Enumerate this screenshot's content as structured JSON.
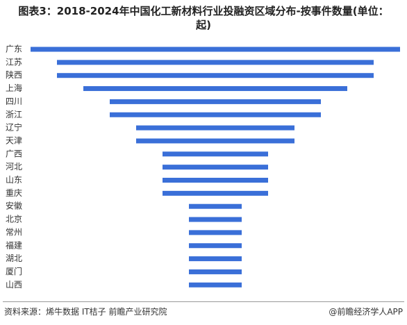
{
  "chart_data": {
    "type": "funnel",
    "title": "图表3：2018-2024年中国化工新材料行业投融资区域分布-按事件数量(单位：起)",
    "categories": [
      "广东",
      "江苏",
      "陕西",
      "上海",
      "四川",
      "浙江",
      "辽宁",
      "天津",
      "广西",
      "河北",
      "山东",
      "重庆",
      "安徽",
      "北京",
      "常州",
      "福建",
      "湖北",
      "厦门",
      "山西"
    ],
    "values": [
      7,
      6,
      6,
      5,
      4,
      4,
      3,
      3,
      2,
      2,
      2,
      2,
      1,
      1,
      1,
      1,
      1,
      1,
      1
    ],
    "color": "#3a6fd8",
    "source": "资料来源：烯牛数据 IT桔子 前瞻产业研究院",
    "credit": "@前瞻经济学人APP"
  }
}
